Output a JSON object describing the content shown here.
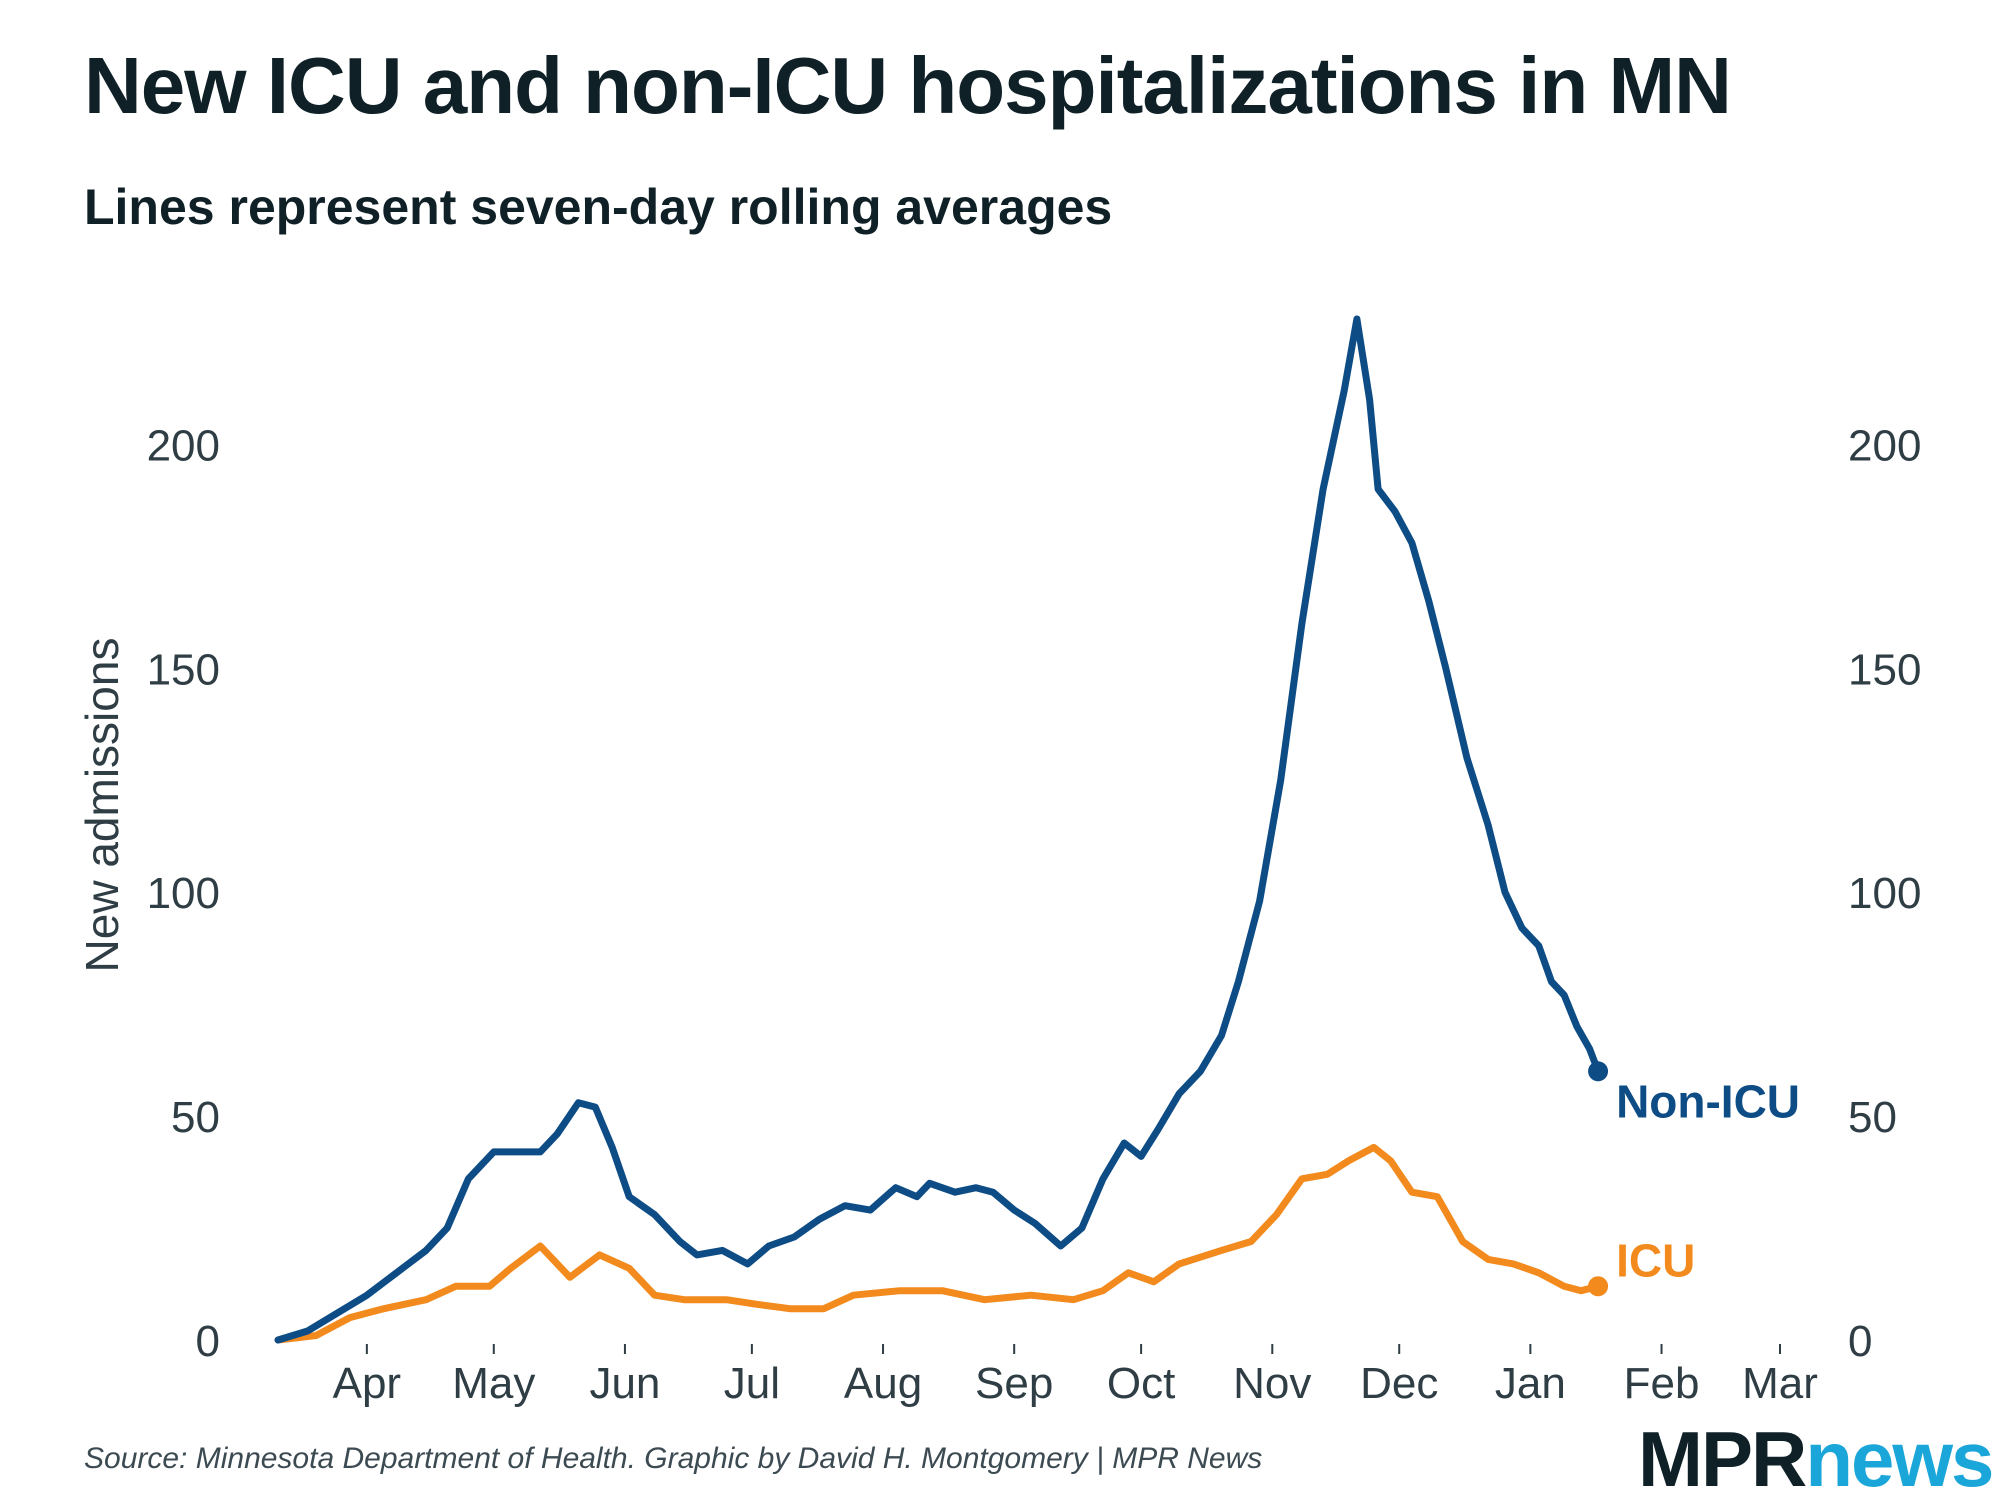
{
  "title": "New ICU and non-ICU hospitalizations in MN",
  "subtitle": "Lines represent seven-day rolling averages",
  "source": "Source: Minnesota Department of Health. Graphic by David H. Montgomery | MPR News",
  "logo": {
    "part1": "MPR",
    "part2": "news"
  },
  "colors": {
    "non_icu": "#0e4c86",
    "icu": "#f28a1e",
    "text": "#0f2027",
    "axis_text": "#2f3d44"
  },
  "chart_data": {
    "type": "line",
    "title": "New ICU and non-ICU hospitalizations in MN",
    "subtitle": "Lines represent seven-day rolling averages",
    "ylabel": "New admissions",
    "xlabel": "",
    "ylim": [
      0,
      230
    ],
    "yticks": [
      0,
      50,
      100,
      150,
      200
    ],
    "xlim": [
      "2020-03-11",
      "2021-03-01"
    ],
    "xticks": [
      {
        "date": "2020-04-01",
        "label": "Apr"
      },
      {
        "date": "2020-05-01",
        "label": "May"
      },
      {
        "date": "2020-06-01",
        "label": "Jun"
      },
      {
        "date": "2020-07-01",
        "label": "Jul"
      },
      {
        "date": "2020-08-01",
        "label": "Aug"
      },
      {
        "date": "2020-09-01",
        "label": "Sep"
      },
      {
        "date": "2020-10-01",
        "label": "Oct"
      },
      {
        "date": "2020-11-01",
        "label": "Nov"
      },
      {
        "date": "2020-12-01",
        "label": "Dec"
      },
      {
        "date": "2021-01-01",
        "label": "Jan"
      },
      {
        "date": "2021-02-01",
        "label": "Feb"
      },
      {
        "date": "2021-03-01",
        "label": "Mar"
      }
    ],
    "grid": false,
    "legend": "direct labels at line ends",
    "series": [
      {
        "name": "Non-ICU",
        "points": [
          [
            "2020-03-11",
            0
          ],
          [
            "2020-03-18",
            2
          ],
          [
            "2020-03-25",
            6
          ],
          [
            "2020-04-01",
            10
          ],
          [
            "2020-04-08",
            15
          ],
          [
            "2020-04-15",
            20
          ],
          [
            "2020-04-20",
            25
          ],
          [
            "2020-04-25",
            36
          ],
          [
            "2020-05-01",
            42
          ],
          [
            "2020-05-06",
            42
          ],
          [
            "2020-05-12",
            42
          ],
          [
            "2020-05-16",
            46
          ],
          [
            "2020-05-21",
            53
          ],
          [
            "2020-05-25",
            52
          ],
          [
            "2020-05-29",
            43
          ],
          [
            "2020-06-02",
            32
          ],
          [
            "2020-06-08",
            28
          ],
          [
            "2020-06-14",
            22
          ],
          [
            "2020-06-18",
            19
          ],
          [
            "2020-06-24",
            20
          ],
          [
            "2020-06-30",
            17
          ],
          [
            "2020-07-05",
            21
          ],
          [
            "2020-07-11",
            23
          ],
          [
            "2020-07-17",
            27
          ],
          [
            "2020-07-23",
            30
          ],
          [
            "2020-07-29",
            29
          ],
          [
            "2020-08-04",
            34
          ],
          [
            "2020-08-09",
            32
          ],
          [
            "2020-08-12",
            35
          ],
          [
            "2020-08-18",
            33
          ],
          [
            "2020-08-23",
            34
          ],
          [
            "2020-08-27",
            33
          ],
          [
            "2020-09-01",
            29
          ],
          [
            "2020-09-06",
            26
          ],
          [
            "2020-09-12",
            21
          ],
          [
            "2020-09-17",
            25
          ],
          [
            "2020-09-22",
            36
          ],
          [
            "2020-09-27",
            44
          ],
          [
            "2020-10-01",
            41
          ],
          [
            "2020-10-05",
            47
          ],
          [
            "2020-10-10",
            55
          ],
          [
            "2020-10-15",
            60
          ],
          [
            "2020-10-20",
            68
          ],
          [
            "2020-10-24",
            80
          ],
          [
            "2020-10-29",
            98
          ],
          [
            "2020-11-03",
            125
          ],
          [
            "2020-11-08",
            160
          ],
          [
            "2020-11-13",
            190
          ],
          [
            "2020-11-18",
            212
          ],
          [
            "2020-11-21",
            228
          ],
          [
            "2020-11-24",
            210
          ],
          [
            "2020-11-26",
            190
          ],
          [
            "2020-11-30",
            185
          ],
          [
            "2020-12-04",
            178
          ],
          [
            "2020-12-08",
            165
          ],
          [
            "2020-12-12",
            150
          ],
          [
            "2020-12-17",
            130
          ],
          [
            "2020-12-22",
            115
          ],
          [
            "2020-12-26",
            100
          ],
          [
            "2020-12-30",
            92
          ],
          [
            "2021-01-03",
            88
          ],
          [
            "2021-01-06",
            80
          ],
          [
            "2021-01-09",
            77
          ],
          [
            "2021-01-12",
            70
          ],
          [
            "2021-01-15",
            65
          ],
          [
            "2021-01-17",
            60
          ]
        ]
      },
      {
        "name": "ICU",
        "points": [
          [
            "2020-03-11",
            0
          ],
          [
            "2020-03-20",
            1
          ],
          [
            "2020-03-28",
            5
          ],
          [
            "2020-04-05",
            7
          ],
          [
            "2020-04-15",
            9
          ],
          [
            "2020-04-22",
            12
          ],
          [
            "2020-04-30",
            12
          ],
          [
            "2020-05-05",
            16
          ],
          [
            "2020-05-12",
            21
          ],
          [
            "2020-05-19",
            14
          ],
          [
            "2020-05-26",
            19
          ],
          [
            "2020-06-02",
            16
          ],
          [
            "2020-06-08",
            10
          ],
          [
            "2020-06-15",
            9
          ],
          [
            "2020-06-25",
            9
          ],
          [
            "2020-07-02",
            8
          ],
          [
            "2020-07-10",
            7
          ],
          [
            "2020-07-18",
            7
          ],
          [
            "2020-07-25",
            10
          ],
          [
            "2020-08-05",
            11
          ],
          [
            "2020-08-15",
            11
          ],
          [
            "2020-08-25",
            9
          ],
          [
            "2020-09-05",
            10
          ],
          [
            "2020-09-15",
            9
          ],
          [
            "2020-09-22",
            11
          ],
          [
            "2020-09-28",
            15
          ],
          [
            "2020-10-04",
            13
          ],
          [
            "2020-10-10",
            17
          ],
          [
            "2020-10-20",
            20
          ],
          [
            "2020-10-27",
            22
          ],
          [
            "2020-11-02",
            28
          ],
          [
            "2020-11-08",
            36
          ],
          [
            "2020-11-14",
            37
          ],
          [
            "2020-11-19",
            40
          ],
          [
            "2020-11-25",
            43
          ],
          [
            "2020-11-29",
            40
          ],
          [
            "2020-12-04",
            33
          ],
          [
            "2020-12-10",
            32
          ],
          [
            "2020-12-16",
            22
          ],
          [
            "2020-12-22",
            18
          ],
          [
            "2020-12-28",
            17
          ],
          [
            "2021-01-03",
            15
          ],
          [
            "2021-01-09",
            12
          ],
          [
            "2021-01-13",
            11
          ],
          [
            "2021-01-17",
            12
          ]
        ]
      }
    ]
  }
}
